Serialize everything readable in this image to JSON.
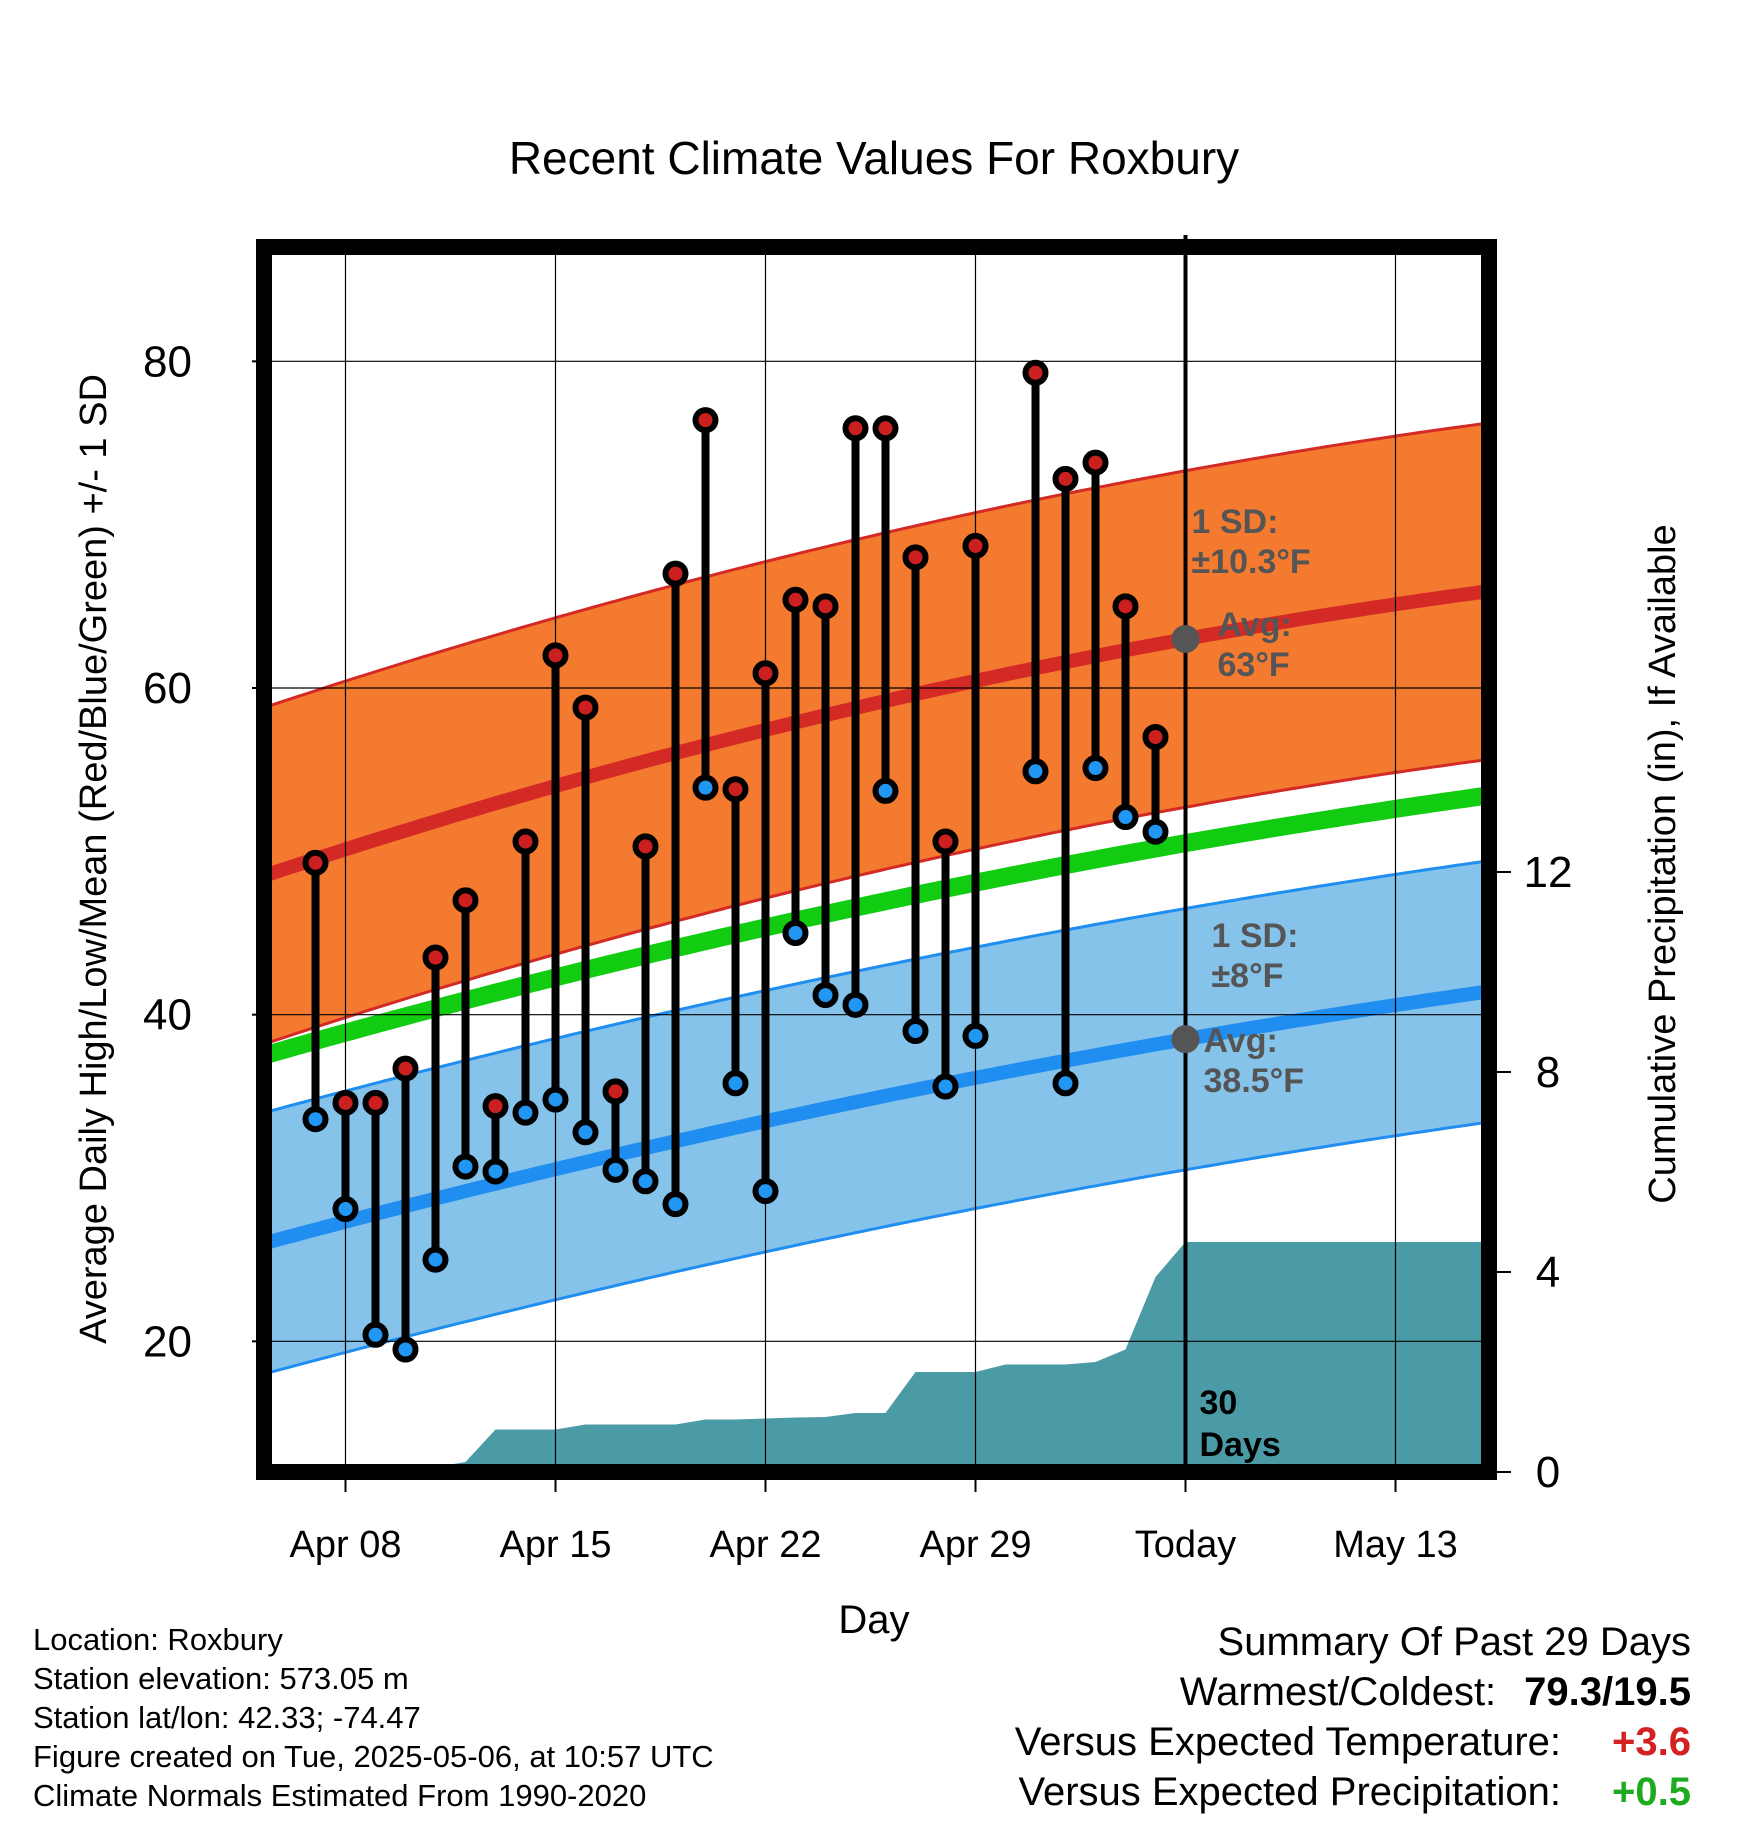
{
  "chart_data": {
    "type": "line",
    "title": "Recent Climate Values For Roxbury",
    "xlabel": "Day",
    "ylabel": "Average Daily High/Low/Mean (Red/Blue/Green) +/- 1 SD",
    "y2label": "Cumulative Precipitation (in), If Available",
    "x_tick_labels": [
      "Apr 08",
      "Apr 15",
      "Apr 22",
      "Apr 29",
      "Today",
      "May 13"
    ],
    "y_ticks": [
      "20",
      "40",
      "60",
      "80"
    ],
    "y2_ticks": [
      "0",
      "4",
      "8",
      "12"
    ],
    "ylim": [
      12,
      87
    ],
    "y2lim": [
      0,
      24.5
    ],
    "grid": true,
    "start_date": "2025-04-06",
    "today_date": "2025-05-06",
    "window_label": "30\nDays",
    "colors": {
      "high": "#d42a26",
      "high_band": "#f47a2f",
      "low": "#1f8ef0",
      "low_band": "#86c3ea",
      "mean": "#12cc12",
      "precip": "#4b9ba6",
      "marker_high": "#cc2020",
      "marker_low": "#2196f3",
      "annotation": "#555555"
    },
    "normals": {
      "high_avg": {
        "start": 48.5,
        "today": 63.0,
        "end": 66.0
      },
      "high_sd": 10.3,
      "low_avg": {
        "start": 26.0,
        "today": 38.5,
        "end": 41.5
      },
      "low_sd": 8.0,
      "mean": {
        "start": 37.5,
        "today": 50.5,
        "end": 53.5
      },
      "chart_end_date": "2025-05-16"
    },
    "annotations": {
      "high_sd_label": "1 SD:\n±10.3°F",
      "high_avg_label": "Avg:\n63°F",
      "low_sd_label": "1 SD:\n±8°F",
      "low_avg_label": "Avg:\n38.5°F"
    },
    "series": [
      {
        "name": "High",
        "x": [
          "2025-04-07",
          "2025-04-08",
          "2025-04-09",
          "2025-04-10",
          "2025-04-11",
          "2025-04-12",
          "2025-04-13",
          "2025-04-14",
          "2025-04-15",
          "2025-04-16",
          "2025-04-17",
          "2025-04-18",
          "2025-04-19",
          "2025-04-20",
          "2025-04-21",
          "2025-04-22",
          "2025-04-23",
          "2025-04-24",
          "2025-04-25",
          "2025-04-26",
          "2025-04-27",
          "2025-04-28",
          "2025-04-29",
          "2025-05-01",
          "2025-05-02",
          "2025-05-03",
          "2025-05-04",
          "2025-05-05"
        ],
        "values": [
          49.3,
          34.6,
          34.6,
          36.7,
          43.5,
          47.0,
          34.4,
          50.6,
          62.0,
          58.8,
          35.3,
          50.3,
          67.0,
          76.4,
          53.8,
          60.9,
          65.4,
          65.0,
          75.9,
          75.9,
          68.0,
          50.6,
          68.7,
          79.3,
          72.8,
          73.8,
          65.0,
          57.0
        ]
      },
      {
        "name": "Low",
        "x": [
          "2025-04-07",
          "2025-04-08",
          "2025-04-09",
          "2025-04-10",
          "2025-04-11",
          "2025-04-12",
          "2025-04-13",
          "2025-04-14",
          "2025-04-15",
          "2025-04-16",
          "2025-04-17",
          "2025-04-18",
          "2025-04-19",
          "2025-04-20",
          "2025-04-21",
          "2025-04-22",
          "2025-04-23",
          "2025-04-24",
          "2025-04-25",
          "2025-04-26",
          "2025-04-27",
          "2025-04-28",
          "2025-04-29",
          "2025-05-01",
          "2025-05-02",
          "2025-05-03",
          "2025-05-04",
          "2025-05-05"
        ],
        "values": [
          33.6,
          28.1,
          20.4,
          19.5,
          25.0,
          30.7,
          30.4,
          34.0,
          34.8,
          32.8,
          30.5,
          29.8,
          28.4,
          53.9,
          35.8,
          29.2,
          45.0,
          41.2,
          40.6,
          53.7,
          39.0,
          35.6,
          38.7,
          54.9,
          35.8,
          55.1,
          52.1,
          51.2
        ]
      },
      {
        "name": "Cumulative Precipitation",
        "x": [
          "2025-04-06",
          "2025-04-07",
          "2025-04-08",
          "2025-04-09",
          "2025-04-10",
          "2025-04-11",
          "2025-04-12",
          "2025-04-13",
          "2025-04-14",
          "2025-04-15",
          "2025-04-16",
          "2025-04-17",
          "2025-04-18",
          "2025-04-19",
          "2025-04-20",
          "2025-04-21",
          "2025-04-22",
          "2025-04-23",
          "2025-04-24",
          "2025-04-25",
          "2025-04-26",
          "2025-04-27",
          "2025-04-28",
          "2025-04-29",
          "2025-04-30",
          "2025-05-01",
          "2025-05-02",
          "2025-05-03",
          "2025-05-04",
          "2025-05-05",
          "2025-05-06"
        ],
        "values": [
          0.0,
          0.0,
          0.0,
          0.05,
          0.05,
          0.1,
          0.2,
          0.85,
          0.85,
          0.85,
          0.95,
          0.95,
          0.95,
          0.95,
          1.05,
          1.05,
          1.07,
          1.09,
          1.1,
          1.18,
          1.18,
          2.0,
          2.0,
          2.0,
          2.15,
          2.15,
          2.15,
          2.2,
          2.45,
          3.9,
          4.6
        ]
      }
    ]
  },
  "footer": {
    "location": "Location: Roxbury",
    "elevation": "Station elevation: 573.05 m",
    "latlon": "Station lat/lon: 42.33; -74.47",
    "created": "Figure created on Tue, 2025-05-06, at 10:57 UTC",
    "normals": "Climate Normals Estimated From 1990-2020"
  },
  "summary": {
    "title": "Summary Of Past 29 Days",
    "warmest_label": "Warmest/Coldest:",
    "warmest_value": "79.3/19.5",
    "temp_label": "Versus Expected Temperature:",
    "temp_value": "+3.6",
    "precip_label": "Versus Expected Precipitation:",
    "precip_value": "+0.5"
  }
}
